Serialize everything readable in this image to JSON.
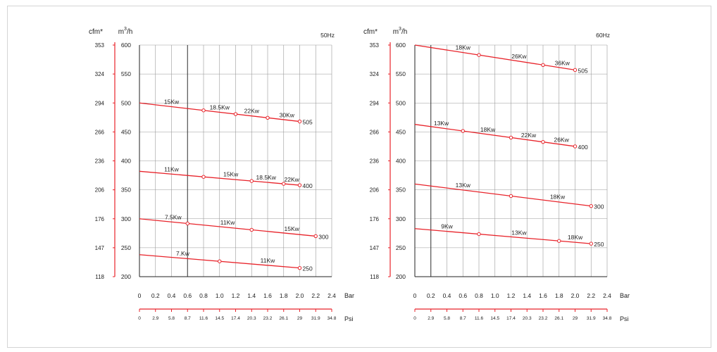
{
  "colors": {
    "curve": "#e8232a",
    "grid": "#999999",
    "axis": "#222222",
    "text": "#222222"
  },
  "chart_data": [
    {
      "type": "line",
      "freq_label": "50Hz",
      "y_unit_label": "m3/h",
      "cfm_label": "cfm*",
      "x_unit_label": "Bar",
      "psi_unit_label": "Psi",
      "ylim": [
        200,
        600
      ],
      "xlim": [
        0,
        2.4
      ],
      "y_ticks": [
        "200",
        "250",
        "300",
        "350",
        "400",
        "450",
        "500",
        "550",
        "600"
      ],
      "cfm_ticks": [
        "118",
        "147",
        "176",
        "206",
        "236",
        "266",
        "294",
        "324",
        "353"
      ],
      "x_ticks": [
        "0",
        "0.2",
        "0.4",
        "0.6",
        "0.8",
        "1.0",
        "1.2",
        "1.4",
        "1.6",
        "1.8",
        "2.0",
        "2.2",
        "2.4"
      ],
      "psi_ticks": [
        "0",
        "2.9",
        "5.8",
        "8.7",
        "11.6",
        "14.5",
        "17.4",
        "20.3",
        "23.2",
        "26.1",
        "29",
        "31.9",
        "34.8"
      ],
      "ref_line_x": 0.6,
      "series": [
        {
          "x0": 0,
          "y0": 500,
          "x1": 2.0,
          "y1": 468,
          "end_label": "505",
          "markers": [
            0.8,
            1.2,
            1.6,
            2.0
          ],
          "labels": [
            {
              "text": "15Kw",
              "x": 0.4
            },
            {
              "text": "18.5Kw",
              "x": 1.0
            },
            {
              "text": "22Kw",
              "x": 1.4
            },
            {
              "text": "30Kw",
              "x": 1.84
            }
          ]
        },
        {
          "x0": 0,
          "y0": 382,
          "x1": 2.0,
          "y1": 358,
          "end_label": "400",
          "markers": [
            0.8,
            1.4,
            1.8,
            2.0
          ],
          "labels": [
            {
              "text": "11Kw",
              "x": 0.4
            },
            {
              "text": "15Kw",
              "x": 1.14
            },
            {
              "text": "18.5Kw",
              "x": 1.58
            },
            {
              "text": "22Kw",
              "x": 1.9
            }
          ]
        },
        {
          "x0": 0,
          "y0": 300,
          "x1": 2.2,
          "y1": 270,
          "end_label": "300",
          "markers": [
            0.6,
            1.4,
            2.2
          ],
          "labels": [
            {
              "text": "7.5Kw",
              "x": 0.42
            },
            {
              "text": "11Kw",
              "x": 1.1
            },
            {
              "text": "15Kw",
              "x": 1.9
            }
          ]
        },
        {
          "x0": 0,
          "y0": 238,
          "x1": 2.0,
          "y1": 215,
          "end_label": "250",
          "markers": [
            1.0,
            2.0
          ],
          "labels": [
            {
              "text": "7.Kw",
              "x": 0.54
            },
            {
              "text": "11Kw",
              "x": 1.6
            }
          ]
        }
      ]
    },
    {
      "type": "line",
      "freq_label": "60Hz",
      "y_unit_label": "m3/h",
      "cfm_label": "cfm*",
      "x_unit_label": "Bar",
      "psi_unit_label": "Psi",
      "ylim": [
        200,
        600
      ],
      "xlim": [
        0,
        2.4
      ],
      "y_ticks": [
        "200",
        "250",
        "300",
        "350",
        "400",
        "450",
        "500",
        "550",
        "600"
      ],
      "cfm_ticks": [
        "118",
        "147",
        "176",
        "206",
        "236",
        "266",
        "294",
        "324",
        "353"
      ],
      "x_ticks": [
        "0",
        "0.2",
        "0.4",
        "0.6",
        "0.8",
        "1.0",
        "1.2",
        "1.4",
        "1.6",
        "1.8",
        "2.0",
        "2.2",
        "2.4"
      ],
      "psi_ticks": [
        "0",
        "2.9",
        "5.8",
        "8.7",
        "11.6",
        "14.5",
        "17.4",
        "20.3",
        "23.2",
        "26.1",
        "29",
        "31.9",
        "34.8"
      ],
      "ref_line_x": 0.2,
      "series": [
        {
          "x0": 0,
          "y0": 600,
          "x1": 2.0,
          "y1": 557,
          "end_label": "505",
          "markers": [
            0.8,
            1.6,
            2.0
          ],
          "labels": [
            {
              "text": "18Kw",
              "x": 0.6
            },
            {
              "text": "26Kw",
              "x": 1.3
            },
            {
              "text": "36Kw",
              "x": 1.84
            }
          ]
        },
        {
          "x0": 0,
          "y0": 463,
          "x1": 2.0,
          "y1": 425,
          "end_label": "400",
          "markers": [
            0.6,
            1.2,
            1.6,
            2.0
          ],
          "labels": [
            {
              "text": "13Kw",
              "x": 0.33
            },
            {
              "text": "18Kw",
              "x": 0.91
            },
            {
              "text": "22Kw",
              "x": 1.42
            },
            {
              "text": "26Kw",
              "x": 1.83
            }
          ]
        },
        {
          "x0": 0,
          "y0": 360,
          "x1": 2.2,
          "y1": 322,
          "end_label": "300",
          "markers": [
            1.2,
            2.2
          ],
          "labels": [
            {
              "text": "13Kw",
              "x": 0.6
            },
            {
              "text": "18Kw",
              "x": 1.78
            }
          ]
        },
        {
          "x0": 0,
          "y0": 283,
          "x1": 2.2,
          "y1": 257,
          "end_label": "250",
          "markers": [
            0.8,
            1.8,
            2.2
          ],
          "labels": [
            {
              "text": "9Kw",
              "x": 0.4
            },
            {
              "text": "13Kw",
              "x": 1.3
            },
            {
              "text": "18Kw",
              "x": 2.0
            }
          ]
        }
      ]
    }
  ]
}
